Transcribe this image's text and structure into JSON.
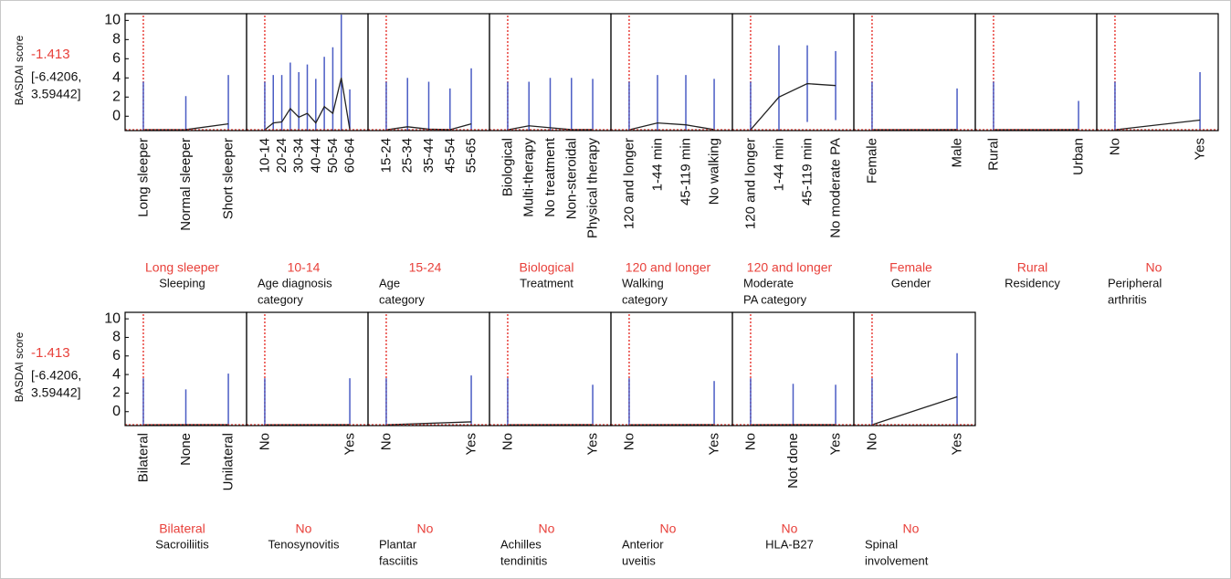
{
  "chart_data": [
    {
      "type": "line",
      "y_label": "BASDAI score",
      "current_value": -1.413,
      "interval": [
        "[-6.4206,",
        "3.59442]"
      ],
      "ylim": [
        -1.5,
        10.7
      ],
      "yticks": [
        0,
        2,
        4,
        6,
        8,
        10
      ],
      "panels": [
        {
          "x_label": [
            "Sleeping"
          ],
          "current": "Long sleeper",
          "categories": [
            "Long sleeper",
            "Normal sleeper",
            "Short sleeper"
          ],
          "values": [
            -1.413,
            -1.4,
            -0.8
          ],
          "lower": [
            -6.42,
            -4.9,
            -5.9
          ],
          "upper": [
            3.6,
            2.1,
            4.3
          ]
        },
        {
          "x_label": [
            "Age diagnosis",
            "category"
          ],
          "current": "10-14",
          "categories": [
            "10-14",
            null,
            "20-24",
            null,
            "30-34",
            null,
            "40-44",
            null,
            "50-54",
            null,
            "60-64"
          ],
          "values": [
            -1.413,
            -0.7,
            -0.6,
            0.8,
            -0.1,
            0.3,
            -0.7,
            1.0,
            0.3,
            4.0,
            -1.4
          ],
          "lower": [
            -6.42,
            -5.7,
            -5.5,
            -4.0,
            -4.8,
            -4.8,
            -5.3,
            -4.2,
            -6.6,
            -2.6,
            -5.6
          ],
          "upper": [
            3.6,
            4.3,
            4.3,
            5.6,
            4.6,
            5.4,
            3.9,
            6.2,
            7.2,
            10.6,
            2.8
          ]
        },
        {
          "x_label": [
            "Age",
            "category"
          ],
          "current": "15-24",
          "categories": [
            "15-24",
            "25-34",
            "35-44",
            "45-54",
            "55-65"
          ],
          "values": [
            -1.413,
            -1.1,
            -1.35,
            -1.4,
            -0.8
          ],
          "lower": [
            -6.42,
            -6.2,
            -6.3,
            -5.7,
            -6.6
          ],
          "upper": [
            3.6,
            4.0,
            3.6,
            2.9,
            5.0
          ]
        },
        {
          "x_label": [
            "Treatment"
          ],
          "current": "Biological",
          "categories": [
            "Biological",
            "Multi-therapy",
            "No treatment",
            "Non-steroidal",
            "Physical therapy"
          ],
          "values": [
            -1.413,
            -1.0,
            -1.2,
            -1.4,
            -1.4
          ],
          "lower": [
            -6.42,
            -5.6,
            -6.4,
            -6.8,
            -6.7
          ],
          "upper": [
            3.6,
            3.6,
            4.0,
            4.0,
            3.9
          ]
        },
        {
          "x_label": [
            "Walking",
            "category"
          ],
          "current": "120 and longer",
          "categories": [
            "120 and longer",
            "1-44 min",
            "45-119 min",
            "No walking"
          ],
          "values": [
            -1.413,
            -0.7,
            -0.9,
            -1.4
          ],
          "lower": [
            -6.42,
            -5.7,
            -6.1,
            -6.7
          ],
          "upper": [
            3.6,
            4.3,
            4.3,
            3.9
          ]
        },
        {
          "x_label": [
            "Moderate",
            "PA category"
          ],
          "current": "120 and longer",
          "categories": [
            "120 and longer",
            "1-44 min",
            "45-119 min",
            "No moderate PA"
          ],
          "values": [
            -1.413,
            2.0,
            3.4,
            3.2
          ],
          "lower": [
            -6.42,
            -3.4,
            -0.6,
            -0.4
          ],
          "upper": [
            3.6,
            7.4,
            7.4,
            6.8
          ]
        },
        {
          "x_label": [
            "Gender"
          ],
          "current": "Female",
          "categories": [
            "Female",
            "Male"
          ],
          "values": [
            -1.413,
            -1.4
          ],
          "lower": [
            -6.42,
            -5.7
          ],
          "upper": [
            3.6,
            2.9
          ]
        },
        {
          "x_label": [
            "Residency"
          ],
          "current": "Rural",
          "categories": [
            "Rural",
            "Urban"
          ],
          "values": [
            -1.413,
            -1.4
          ],
          "lower": [
            -6.42,
            -4.4
          ],
          "upper": [
            3.6,
            1.6
          ]
        },
        {
          "x_label": [
            "Peripheral",
            "arthritis"
          ],
          "current": "No",
          "categories": [
            "No",
            "Yes"
          ],
          "values": [
            -1.413,
            -0.4
          ],
          "lower": [
            -6.42,
            -5.4
          ],
          "upper": [
            3.6,
            4.6
          ]
        }
      ]
    },
    {
      "type": "line",
      "y_label": "BASDAI score",
      "current_value": -1.413,
      "interval": [
        "[-6.4206,",
        "3.59442]"
      ],
      "ylim": [
        -1.5,
        10.7
      ],
      "yticks": [
        0,
        2,
        4,
        6,
        8,
        10
      ],
      "panels": [
        {
          "x_label": [
            "Sacroiliitis"
          ],
          "current": "Bilateral",
          "categories": [
            "Bilateral",
            "None",
            "Unilateral"
          ],
          "values": [
            -1.413,
            -1.4,
            -1.4
          ],
          "lower": [
            -6.42,
            -5.2,
            -6.9
          ],
          "upper": [
            3.6,
            2.4,
            4.1
          ]
        },
        {
          "x_label": [
            "Tenosynovitis"
          ],
          "current": "No",
          "categories": [
            "No",
            "Yes"
          ],
          "values": [
            -1.413,
            -1.4
          ],
          "lower": [
            -6.42,
            -6.4
          ],
          "upper": [
            3.6,
            3.6
          ]
        },
        {
          "x_label": [
            "Plantar",
            "fasciitis"
          ],
          "current": "No",
          "categories": [
            "No",
            "Yes"
          ],
          "values": [
            -1.413,
            -1.1
          ],
          "lower": [
            -6.42,
            -6.1
          ],
          "upper": [
            3.6,
            3.9
          ]
        },
        {
          "x_label": [
            "Achilles",
            "tendinitis"
          ],
          "current": "No",
          "categories": [
            "No",
            "Yes"
          ],
          "values": [
            -1.413,
            -1.4
          ],
          "lower": [
            -6.42,
            -5.7
          ],
          "upper": [
            3.6,
            2.9
          ]
        },
        {
          "x_label": [
            "Anterior",
            "uveitis"
          ],
          "current": "No",
          "categories": [
            "No",
            "Yes"
          ],
          "values": [
            -1.413,
            -1.4
          ],
          "lower": [
            -6.42,
            -6.1
          ],
          "upper": [
            3.6,
            3.3
          ]
        },
        {
          "x_label": [
            "HLA-B27"
          ],
          "current": "No",
          "categories": [
            "No",
            "Not done",
            "Yes"
          ],
          "values": [
            -1.413,
            -1.4,
            -1.4
          ],
          "lower": [
            -6.42,
            -5.8,
            -5.7
          ],
          "upper": [
            3.6,
            3.0,
            2.9
          ]
        },
        {
          "x_label": [
            "Spinal",
            "involvement"
          ],
          "current": "No",
          "categories": [
            "No",
            "Yes"
          ],
          "values": [
            -1.413,
            1.6
          ],
          "lower": [
            -6.42,
            -3.1
          ],
          "upper": [
            3.6,
            6.3
          ]
        }
      ]
    }
  ]
}
